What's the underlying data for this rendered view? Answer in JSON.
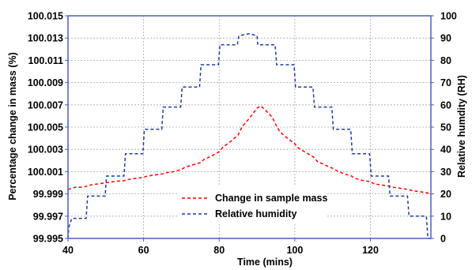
{
  "chart_data": {
    "type": "line",
    "xlabel": "Time (mins)",
    "ylabel_left": "Percentage change in mass (%)",
    "ylabel_right": "Relative humdity  (RH)",
    "xlim": [
      40,
      136
    ],
    "ylim_left": [
      99.995,
      100.015
    ],
    "ylim_right": [
      0,
      100
    ],
    "grid": true,
    "legend_position": "bottom-center",
    "x_ticks": [
      "40",
      "60",
      "80",
      "100",
      "120"
    ],
    "x_tick_values": [
      40,
      60,
      80,
      100,
      120
    ],
    "y_left_ticks": [
      "99.995",
      "99.997",
      "99.999",
      "100.001",
      "100.003",
      "100.005",
      "100.007",
      "100.009",
      "100.011",
      "100.013",
      "100.015"
    ],
    "y_left_tick_values": [
      99.995,
      99.997,
      99.999,
      100.001,
      100.003,
      100.005,
      100.007,
      100.009,
      100.011,
      100.013,
      100.015
    ],
    "y_right_ticks": [
      "0",
      "10",
      "20",
      "30",
      "40",
      "50",
      "60",
      "70",
      "80",
      "90",
      "100"
    ],
    "y_right_tick_values": [
      0,
      10,
      20,
      30,
      40,
      50,
      60,
      70,
      80,
      90,
      100
    ],
    "series": [
      {
        "name": "Change in sample mass",
        "axis": "left",
        "color": "#ff0000",
        "style": "dashed",
        "x": [
          40,
          41,
          42,
          44,
          45,
          46,
          48,
          50,
          52,
          55,
          56,
          58,
          60,
          61,
          63,
          65,
          66,
          68,
          70,
          71,
          73,
          75,
          76,
          78,
          80,
          81,
          83,
          85,
          86,
          88,
          90,
          91,
          92,
          94,
          95,
          96,
          98,
          100,
          101,
          103,
          105,
          106,
          108,
          110,
          111,
          113,
          115,
          116,
          118,
          120,
          121,
          123,
          125,
          126,
          128,
          130,
          131,
          133,
          135,
          136
        ],
        "y": [
          99.9994,
          99.9995,
          99.9996,
          99.9996,
          99.9997,
          99.9998,
          99.9999,
          100.0,
          100.0001,
          100.0002,
          100.0003,
          100.0004,
          100.0005,
          100.0006,
          100.0007,
          100.0008,
          100.0009,
          100.001,
          100.0012,
          100.0014,
          100.0016,
          100.0018,
          100.0021,
          100.0024,
          100.0028,
          100.0032,
          100.0037,
          100.0043,
          100.005,
          100.0058,
          100.0067,
          100.0069,
          100.0066,
          100.0059,
          100.0052,
          100.0046,
          100.004,
          100.0035,
          100.0031,
          100.0027,
          100.0023,
          100.0019,
          100.0016,
          100.0013,
          100.0011,
          100.0008,
          100.0006,
          100.0004,
          100.0002,
          100.0001,
          99.9999,
          99.9998,
          99.9997,
          99.9996,
          99.9995,
          99.9994,
          99.9993,
          99.9992,
          99.9991,
          99.999
        ]
      },
      {
        "name": "Relative humidity",
        "axis": "right",
        "color": "#1f3c9e",
        "style": "dashed",
        "x": [
          40,
          40.2,
          41,
          44.8,
          45.2,
          49.8,
          50.2,
          54.8,
          55.2,
          59.8,
          60.2,
          64.8,
          65.2,
          69.8,
          70.2,
          74.8,
          75.2,
          79.8,
          80.2,
          84.8,
          85.2,
          88,
          90,
          90.2,
          94.8,
          95.2,
          99.8,
          100.2,
          104.8,
          105.2,
          109.8,
          110.2,
          114.8,
          115.2,
          119.8,
          120.2,
          124.8,
          125.2,
          129.8,
          130.2,
          134.8,
          135.2,
          136
        ],
        "y": [
          0,
          5,
          9,
          9,
          19,
          19,
          28,
          28,
          38,
          38,
          49,
          49,
          59,
          59,
          68,
          68,
          78,
          78,
          87,
          87,
          91,
          92,
          91,
          87,
          87,
          78,
          78,
          68,
          68,
          59,
          59,
          49,
          49,
          38,
          38,
          28,
          28,
          19,
          19,
          10,
          10,
          0,
          0
        ]
      }
    ]
  }
}
